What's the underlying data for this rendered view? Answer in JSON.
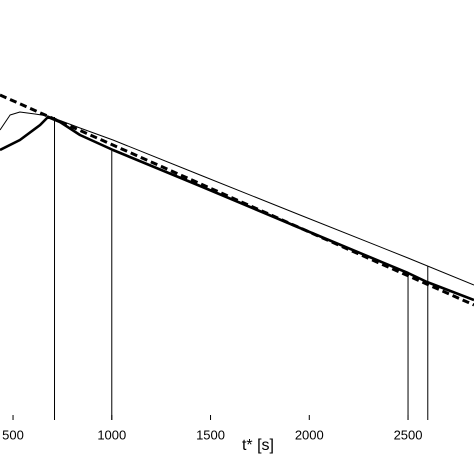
{
  "chart_data": {
    "type": "line",
    "x_label": "t* [s]",
    "xlim": [
      434,
      2834
    ],
    "ylim": [
      0,
      420
    ],
    "xticks": [
      500,
      1000,
      1500,
      2000,
      2500
    ],
    "series": [
      {
        "color": "#000000",
        "width": 1,
        "x": [
          434,
          485,
          535,
          611,
          677,
          839,
          1006,
          1447,
          1953,
          2500,
          2834
        ],
        "values": [
          290,
          305,
          308,
          306,
          304,
          292,
          280,
          245,
          205,
          162,
          135
        ]
      },
      {
        "color": "#000000",
        "width": 2.6,
        "x": [
          434,
          535,
          637,
          677,
          738,
          839,
          1006,
          1447,
          1953,
          2500,
          2596,
          2834
        ],
        "values": [
          270,
          280,
          295,
          303,
          298,
          285,
          270,
          234,
          192,
          147,
          138,
          120
        ]
      },
      {
        "color": "#000000",
        "width": 3,
        "dash": true,
        "x": [
          434,
          2834
        ],
        "values": [
          325,
          115
        ]
      }
    ],
    "vlines": [
      {
        "x": 710,
        "y": 303
      },
      {
        "x": 1000,
        "y": 270
      },
      {
        "x": 2500,
        "y": 147
      },
      {
        "x": 2600,
        "y": 154
      }
    ]
  }
}
